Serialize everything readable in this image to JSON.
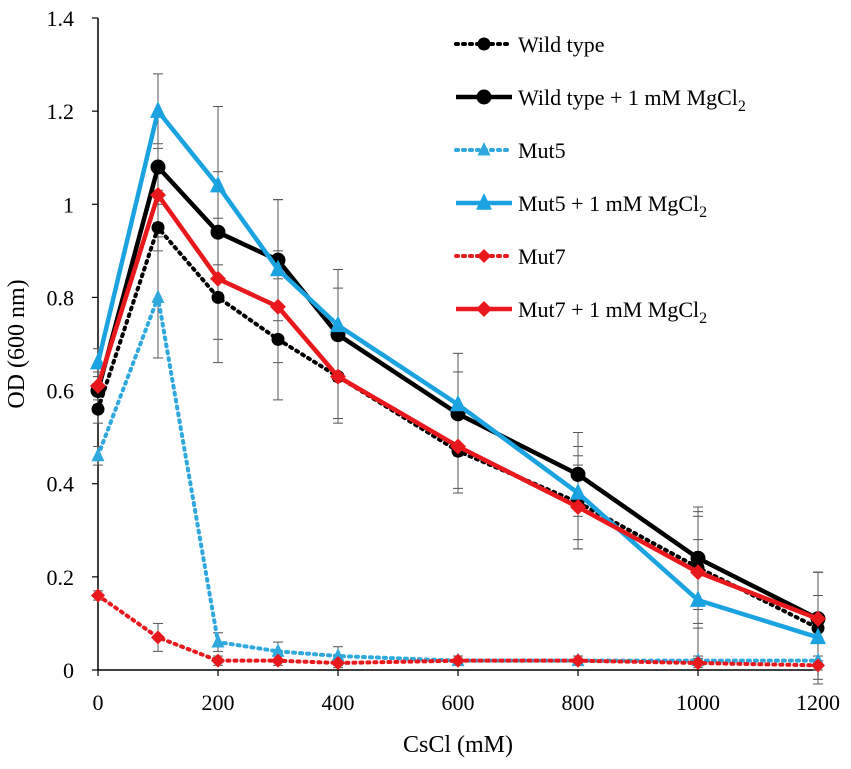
{
  "chart_data": {
    "type": "line",
    "xlabel": "CsCl (mM)",
    "ylabel": "OD (600 nm)",
    "xlim": [
      0,
      1200
    ],
    "ylim": [
      0,
      1.4
    ],
    "xticks": [
      "0",
      "200",
      "400",
      "600",
      "800",
      "1000",
      "1200"
    ],
    "yticks": [
      "0",
      "0.2",
      "0.4",
      "0.6",
      "0.8",
      "1",
      "1.2",
      "1.4"
    ],
    "x": [
      0,
      100,
      200,
      300,
      400,
      600,
      800,
      1000,
      1200
    ],
    "series": [
      {
        "name": "Wild type",
        "color": "#000000",
        "dash": "dotted",
        "marker": "circle",
        "values": [
          0.56,
          0.95,
          0.8,
          0.71,
          0.63,
          0.47,
          0.36,
          0.22,
          0.09
        ],
        "errors": [
          0.03,
          0.05,
          0.14,
          0.13,
          0.1,
          0.09,
          0.1,
          0.12,
          0.12
        ]
      },
      {
        "name": "Wild type + 1 mM MgCl",
        "sub": "2",
        "color": "#000000",
        "dash": "solid",
        "marker": "circle",
        "values": [
          0.6,
          1.08,
          0.94,
          0.88,
          0.72,
          0.55,
          0.42,
          0.24,
          0.11
        ],
        "errors": [
          0.03,
          0.05,
          0.13,
          0.13,
          0.1,
          0.09,
          0.09,
          0.11,
          0.1
        ]
      },
      {
        "name": "Mut5",
        "color": "#2fa8dd",
        "dash": "dotted",
        "marker": "triangle",
        "values": [
          0.46,
          0.8,
          0.06,
          0.04,
          0.03,
          0.02,
          0.02,
          0.02,
          0.02
        ],
        "errors": [
          0.02,
          0.13,
          0.02,
          0.02,
          0.02,
          0.01,
          0.01,
          0.01,
          0.01
        ]
      },
      {
        "name": "Mut5 + 1 mM MgCl",
        "sub": "2",
        "color": "#1aa3e0",
        "dash": "solid",
        "marker": "triangle",
        "values": [
          0.66,
          1.2,
          1.04,
          0.86,
          0.74,
          0.57,
          0.38,
          0.15,
          0.07
        ],
        "errors": [
          0.03,
          0.08,
          0.17,
          0.15,
          0.12,
          0.11,
          0.1,
          0.13,
          0.09
        ]
      },
      {
        "name": "Mut7",
        "color": "#e8181c",
        "dash": "dotted",
        "marker": "diamond",
        "values": [
          0.16,
          0.07,
          0.02,
          0.02,
          0.015,
          0.02,
          0.02,
          0.015,
          0.01
        ],
        "errors": [
          0.01,
          0.03,
          0.01,
          0.01,
          0.01,
          0.01,
          0.01,
          0.01,
          0.01
        ]
      },
      {
        "name": "Mut7 + 1 mM MgCl",
        "sub": "2",
        "color": "#e8181c",
        "dash": "solid",
        "marker": "diamond",
        "values": [
          0.61,
          1.02,
          0.84,
          0.78,
          0.63,
          0.48,
          0.35,
          0.21,
          0.11
        ],
        "errors": [
          0.03,
          0.06,
          0.13,
          0.12,
          0.09,
          0.09,
          0.09,
          0.12,
          0.1
        ]
      }
    ],
    "legend": "top-right",
    "grid": false
  }
}
